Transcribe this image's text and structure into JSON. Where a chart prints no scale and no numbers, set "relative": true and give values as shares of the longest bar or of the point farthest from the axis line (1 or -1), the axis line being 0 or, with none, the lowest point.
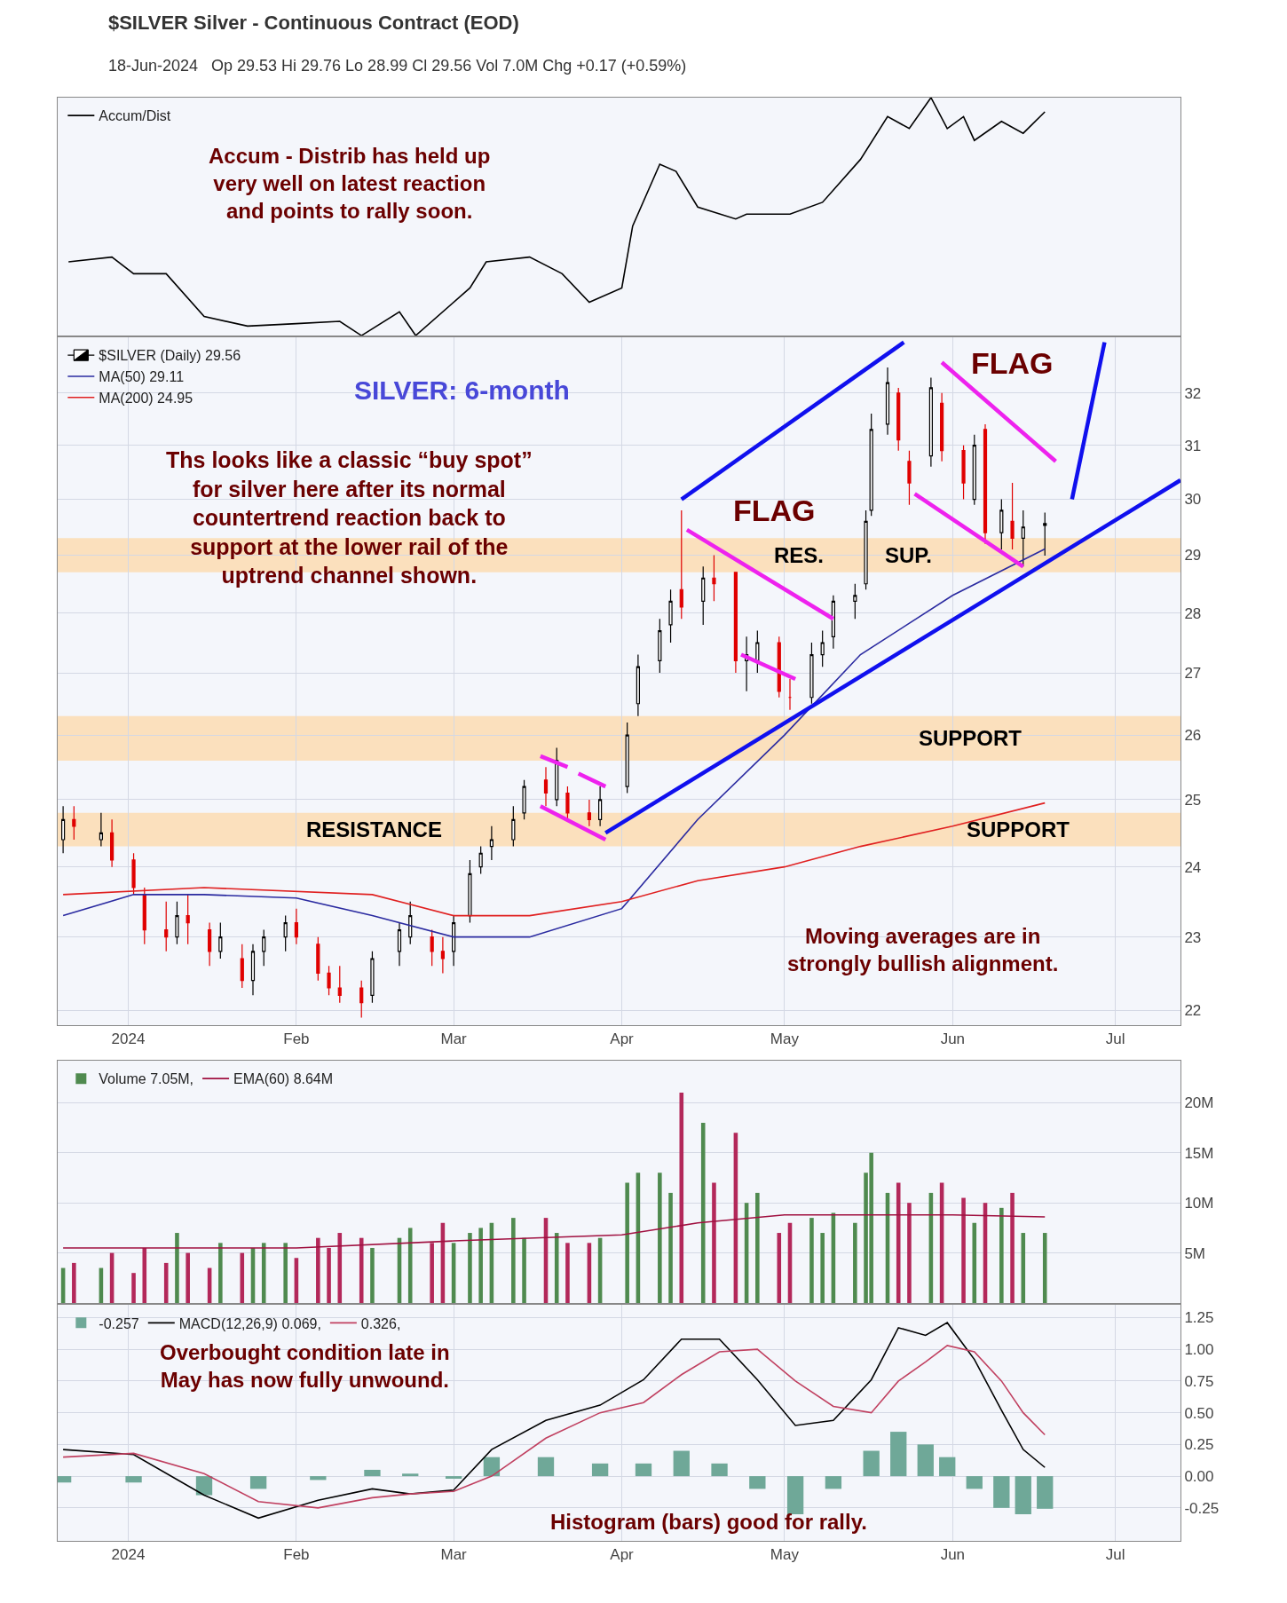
{
  "chart_data": [
    {
      "type": "line",
      "title": "$SILVER Silver - Continuous Contract (EOD)",
      "subtitle": "18-Jun-2024   Op 29.53 Hi 29.76 Lo 28.99 Cl 29.56 Vol 7.0M Chg +0.17 (+0.59%)",
      "relative": true,
      "legend": "top left",
      "grid": true,
      "tick_labels": false,
      "xlim": [
        "2023-12-19",
        "2024-07-13"
      ],
      "series": [
        {
          "name": "Accum/Dist",
          "color": "#000000",
          "x": [
            "2023-12-21",
            "2023-12-29",
            "2024-01-02",
            "2024-01-08",
            "2024-01-15",
            "2024-01-23",
            "2024-02-01",
            "2024-02-09",
            "2024-02-13",
            "2024-02-20",
            "2024-02-23",
            "2024-03-04",
            "2024-03-07",
            "2024-03-15",
            "2024-03-21",
            "2024-03-26",
            "2024-04-01",
            "2024-04-03",
            "2024-04-08",
            "2024-04-11",
            "2024-04-15",
            "2024-04-22",
            "2024-04-24",
            "2024-05-02",
            "2024-05-08",
            "2024-05-15",
            "2024-05-20",
            "2024-05-24",
            "2024-05-28",
            "2024-05-31",
            "2024-06-03",
            "2024-06-05",
            "2024-06-10",
            "2024-06-14",
            "2024-06-18"
          ],
          "values": [
            0.31,
            0.33,
            0.26,
            0.26,
            0.08,
            0.04,
            0.05,
            0.06,
            0.0,
            0.1,
            0.0,
            0.2,
            0.31,
            0.33,
            0.26,
            0.14,
            0.2,
            0.46,
            0.72,
            0.69,
            0.54,
            0.49,
            0.51,
            0.51,
            0.56,
            0.74,
            0.92,
            0.87,
            1.0,
            0.87,
            0.92,
            0.82,
            0.9,
            0.85,
            0.94
          ]
        }
      ],
      "annotations": [
        "Accum - Distrib has held up\nvery well on latest reaction\nand points to rally soon."
      ]
    },
    {
      "type": "candlestick",
      "legend": "top left",
      "grid": true,
      "log": "y",
      "xlim": [
        "2023-12-19",
        "2024-07-13"
      ],
      "xticks": [
        {
          "value": "2024-01-01",
          "label": "2024"
        },
        {
          "value": "2024-02-01",
          "label": "Feb"
        },
        {
          "value": "2024-03-01",
          "label": "Mar"
        },
        {
          "value": "2024-04-01",
          "label": "Apr"
        },
        {
          "value": "2024-05-01",
          "label": "May"
        },
        {
          "value": "2024-06-01",
          "label": "Jun"
        },
        {
          "value": "2024-07-01",
          "label": "Jul"
        }
      ],
      "ylim": [
        21.8,
        33.1
      ],
      "yticks": [
        22,
        23,
        24,
        25,
        26,
        27,
        28,
        29,
        30,
        31,
        32
      ],
      "bands": [
        {
          "axis": "y",
          "from": 24.3,
          "to": 24.8,
          "label": "RESISTANCE",
          "color": "#fbe0bd"
        },
        {
          "axis": "y",
          "from": 25.6,
          "to": 26.3,
          "label": "SUPPORT",
          "color": "#fbe0bd"
        },
        {
          "axis": "y",
          "from": 28.7,
          "to": 29.3,
          "label": "RES.",
          "color": "#fbe0bd"
        }
      ],
      "series": [
        {
          "name": "$SILVER (Daily) 29.56",
          "type": "candlestick",
          "colors": [
            "#000000",
            "#e00000",
            "#000000",
            "#e00000",
            "#e00000",
            "#e00000",
            "#e00000",
            "#000000",
            "#e00000",
            "#e00000",
            "#000000",
            "#e00000",
            "#000000",
            "#000000",
            "#000000",
            "#e00000",
            "#e00000",
            "#e00000",
            "#e00000",
            "#e00000",
            "#000000",
            "#000000",
            "#000000",
            "#e00000",
            "#e00000",
            "#000000",
            "#000000",
            "#000000",
            "#000000",
            "#000000",
            "#000000",
            "#e00000",
            "#000000",
            "#e00000",
            "#e00000",
            "#000000",
            "#000000",
            "#000000",
            "#000000",
            "#000000",
            "#e00000",
            "#000000",
            "#e00000",
            "#e00000",
            "#000000",
            "#000000",
            "#e00000",
            "#e00000",
            "#000000",
            "#000000",
            "#000000",
            "#000000",
            "#000000",
            "#000000",
            "#000000",
            "#e00000",
            "#e00000",
            "#000000",
            "#e00000",
            "#e00000",
            "#000000",
            "#e00000",
            "#000000",
            "#e00000",
            "#000000",
            "#000000"
          ],
          "x": [
            "2023-12-20",
            "2023-12-22",
            "2023-12-27",
            "2023-12-29",
            "2024-01-02",
            "2024-01-04",
            "2024-01-08",
            "2024-01-10",
            "2024-01-12",
            "2024-01-16",
            "2024-01-18",
            "2024-01-22",
            "2024-01-24",
            "2024-01-26",
            "2024-01-30",
            "2024-02-01",
            "2024-02-05",
            "2024-02-07",
            "2024-02-09",
            "2024-02-13",
            "2024-02-15",
            "2024-02-20",
            "2024-02-22",
            "2024-02-26",
            "2024-02-28",
            "2024-03-01",
            "2024-03-04",
            "2024-03-06",
            "2024-03-08",
            "2024-03-12",
            "2024-03-14",
            "2024-03-18",
            "2024-03-20",
            "2024-03-22",
            "2024-03-26",
            "2024-03-28",
            "2024-04-02",
            "2024-04-04",
            "2024-04-08",
            "2024-04-10",
            "2024-04-12",
            "2024-04-16",
            "2024-04-18",
            "2024-04-22",
            "2024-04-24",
            "2024-04-26",
            "2024-04-30",
            "2024-05-02",
            "2024-05-06",
            "2024-05-08",
            "2024-05-10",
            "2024-05-14",
            "2024-05-16",
            "2024-05-17",
            "2024-05-20",
            "2024-05-22",
            "2024-05-24",
            "2024-05-28",
            "2024-05-30",
            "2024-06-03",
            "2024-06-05",
            "2024-06-07",
            "2024-06-10",
            "2024-06-12",
            "2024-06-14",
            "2024-06-18"
          ],
          "ohlc": [
            [
              24.4,
              24.9,
              24.2,
              24.7
            ],
            [
              24.7,
              24.9,
              24.4,
              24.6
            ],
            [
              24.4,
              24.8,
              24.3,
              24.5
            ],
            [
              24.5,
              24.7,
              24.0,
              24.1
            ],
            [
              24.1,
              24.2,
              23.6,
              23.7
            ],
            [
              23.6,
              23.7,
              22.9,
              23.1
            ],
            [
              23.1,
              23.5,
              22.8,
              23.0
            ],
            [
              23.0,
              23.5,
              22.9,
              23.3
            ],
            [
              23.3,
              23.6,
              22.9,
              23.2
            ],
            [
              23.1,
              23.2,
              22.6,
              22.8
            ],
            [
              22.8,
              23.2,
              22.7,
              23.0
            ],
            [
              22.7,
              22.9,
              22.3,
              22.4
            ],
            [
              22.4,
              22.9,
              22.2,
              22.8
            ],
            [
              22.8,
              23.1,
              22.6,
              23.0
            ],
            [
              23.0,
              23.3,
              22.8,
              23.2
            ],
            [
              23.2,
              23.4,
              22.9,
              23.0
            ],
            [
              22.9,
              23.0,
              22.4,
              22.5
            ],
            [
              22.5,
              22.6,
              22.2,
              22.3
            ],
            [
              22.3,
              22.6,
              22.1,
              22.2
            ],
            [
              22.3,
              22.4,
              21.9,
              22.1
            ],
            [
              22.2,
              22.8,
              22.1,
              22.7
            ],
            [
              22.8,
              23.2,
              22.6,
              23.1
            ],
            [
              23.0,
              23.5,
              22.9,
              23.3
            ],
            [
              23.0,
              23.1,
              22.6,
              22.8
            ],
            [
              22.8,
              23.0,
              22.5,
              22.7
            ],
            [
              22.8,
              23.3,
              22.6,
              23.2
            ],
            [
              23.3,
              24.1,
              23.2,
              23.9
            ],
            [
              24.0,
              24.3,
              23.9,
              24.2
            ],
            [
              24.3,
              24.6,
              24.1,
              24.4
            ],
            [
              24.4,
              24.9,
              24.3,
              24.7
            ],
            [
              24.8,
              25.3,
              24.7,
              25.2
            ],
            [
              25.3,
              25.5,
              24.9,
              25.1
            ],
            [
              25.0,
              25.8,
              24.9,
              25.6
            ],
            [
              25.1,
              25.2,
              24.7,
              24.8
            ],
            [
              24.8,
              25.0,
              24.6,
              24.7
            ],
            [
              24.7,
              25.2,
              24.6,
              25.0
            ],
            [
              25.2,
              26.2,
              25.1,
              26.0
            ],
            [
              26.5,
              27.3,
              26.3,
              27.1
            ],
            [
              27.2,
              27.9,
              27.0,
              27.7
            ],
            [
              27.8,
              28.4,
              27.5,
              28.2
            ],
            [
              28.4,
              29.8,
              27.9,
              28.1
            ],
            [
              28.2,
              28.8,
              27.8,
              28.6
            ],
            [
              28.6,
              29.0,
              28.2,
              28.5
            ],
            [
              28.7,
              28.7,
              27.0,
              27.2
            ],
            [
              27.2,
              27.6,
              26.7,
              27.3
            ],
            [
              27.2,
              27.7,
              27.0,
              27.5
            ],
            [
              27.5,
              27.6,
              26.6,
              26.7
            ],
            [
              26.6,
              26.9,
              26.4,
              26.6
            ],
            [
              26.6,
              27.5,
              26.5,
              27.3
            ],
            [
              27.3,
              27.7,
              27.1,
              27.5
            ],
            [
              27.6,
              28.3,
              27.4,
              28.2
            ],
            [
              28.2,
              28.5,
              27.9,
              28.3
            ],
            [
              28.5,
              29.8,
              28.4,
              29.6
            ],
            [
              29.8,
              31.6,
              29.7,
              31.3
            ],
            [
              31.4,
              32.5,
              31.2,
              32.2
            ],
            [
              32.0,
              32.1,
              30.9,
              31.1
            ],
            [
              30.7,
              30.9,
              29.9,
              30.3
            ],
            [
              30.8,
              32.3,
              30.6,
              32.1
            ],
            [
              31.8,
              32.0,
              30.7,
              30.9
            ],
            [
              30.9,
              31.0,
              30.0,
              30.3
            ],
            [
              30.0,
              31.2,
              29.9,
              31.0
            ],
            [
              31.3,
              31.4,
              29.2,
              29.4
            ],
            [
              29.4,
              30.0,
              29.1,
              29.8
            ],
            [
              29.6,
              30.3,
              29.1,
              29.3
            ],
            [
              29.3,
              29.8,
              28.8,
              29.5
            ],
            [
              29.53,
              29.76,
              28.99,
              29.56
            ]
          ]
        },
        {
          "name": "MA(50) 29.11",
          "type": "line",
          "color": "#2a2aa0",
          "x": [
            "2023-12-20",
            "2024-01-02",
            "2024-01-15",
            "2024-02-01",
            "2024-02-15",
            "2024-03-01",
            "2024-03-15",
            "2024-04-01",
            "2024-04-15",
            "2024-05-01",
            "2024-05-15",
            "2024-06-01",
            "2024-06-18"
          ],
          "values": [
            23.3,
            23.6,
            23.6,
            23.55,
            23.3,
            23.0,
            23.0,
            23.4,
            24.7,
            26.0,
            27.3,
            28.3,
            29.11
          ]
        },
        {
          "name": "MA(200) 24.95",
          "type": "line",
          "color": "#e02020",
          "x": [
            "2023-12-20",
            "2024-01-15",
            "2024-02-15",
            "2024-03-01",
            "2024-03-15",
            "2024-04-01",
            "2024-04-15",
            "2024-05-01",
            "2024-05-15",
            "2024-06-01",
            "2024-06-18"
          ],
          "values": [
            23.6,
            23.7,
            23.6,
            23.3,
            23.3,
            23.5,
            23.8,
            24.0,
            24.3,
            24.6,
            24.95
          ]
        },
        {
          "type": "line",
          "color": "#1010ee",
          "x": [
            "2024-04-12",
            "2024-05-23"
          ],
          "values": [
            30.0,
            33.0
          ]
        },
        {
          "type": "line",
          "color": "#1010ee",
          "x": [
            "2024-03-29",
            "2024-07-13"
          ],
          "values": [
            24.5,
            30.35
          ]
        },
        {
          "type": "line",
          "color": "#1010ee",
          "x": [
            "2024-06-23",
            "2024-06-29"
          ],
          "values": [
            30.0,
            33.0
          ]
        },
        {
          "type": "line",
          "color": "#ee22ee",
          "x": [
            "2024-03-17",
            "2024-03-22"
          ],
          "values": [
            25.67,
            25.5
          ]
        },
        {
          "type": "line",
          "color": "#ee22ee",
          "x": [
            "2024-03-24",
            "2024-03-29"
          ],
          "values": [
            25.4,
            25.2
          ]
        },
        {
          "type": "line",
          "color": "#ee22ee",
          "x": [
            "2024-03-17",
            "2024-03-29"
          ],
          "values": [
            24.9,
            24.4
          ]
        },
        {
          "type": "line",
          "color": "#ee22ee",
          "x": [
            "2024-04-13",
            "2024-05-10"
          ],
          "values": [
            29.45,
            27.9
          ]
        },
        {
          "type": "line",
          "color": "#ee22ee",
          "x": [
            "2024-04-23",
            "2024-05-03"
          ],
          "values": [
            27.3,
            26.9
          ]
        },
        {
          "type": "line",
          "color": "#ee22ee",
          "x": [
            "2024-05-30",
            "2024-06-20"
          ],
          "values": [
            32.6,
            30.7
          ]
        },
        {
          "type": "line",
          "color": "#ee22ee",
          "x": [
            "2024-05-25",
            "2024-06-14"
          ],
          "values": [
            30.1,
            28.8
          ]
        }
      ],
      "annotations": [
        "SILVER: 6-month",
        "Ths looks like a classic “buy spot”\nfor silver here after its normal\ncountertrend reaction back to\nsupport at the lower rail of the\nuptrend channel shown.",
        "FLAG",
        "FLAG",
        "SUP.",
        "SUPPORT",
        "Moving averages are in\nstrongly bullish alignment."
      ]
    },
    {
      "type": "bar",
      "legend": "top left",
      "grid": true,
      "tick_labels": "y",
      "xlim": [
        "2023-12-19",
        "2024-07-13"
      ],
      "ylim": [
        0,
        24.2
      ],
      "yticks": [
        {
          "value": 5,
          "label": "5M"
        },
        {
          "value": 10,
          "label": "10M"
        },
        {
          "value": 15,
          "label": "15M"
        },
        {
          "value": 20,
          "label": "20M"
        }
      ],
      "series": [
        {
          "name": "Volume 7.05M,",
          "type": "bar",
          "x": [
            "2023-12-20",
            "2023-12-22",
            "2023-12-27",
            "2023-12-29",
            "2024-01-02",
            "2024-01-04",
            "2024-01-08",
            "2024-01-10",
            "2024-01-12",
            "2024-01-16",
            "2024-01-18",
            "2024-01-22",
            "2024-01-24",
            "2024-01-26",
            "2024-01-30",
            "2024-02-01",
            "2024-02-05",
            "2024-02-07",
            "2024-02-09",
            "2024-02-13",
            "2024-02-15",
            "2024-02-20",
            "2024-02-22",
            "2024-02-26",
            "2024-02-28",
            "2024-03-01",
            "2024-03-04",
            "2024-03-06",
            "2024-03-08",
            "2024-03-12",
            "2024-03-14",
            "2024-03-18",
            "2024-03-20",
            "2024-03-22",
            "2024-03-26",
            "2024-03-28",
            "2024-04-02",
            "2024-04-04",
            "2024-04-08",
            "2024-04-10",
            "2024-04-12",
            "2024-04-16",
            "2024-04-18",
            "2024-04-22",
            "2024-04-24",
            "2024-04-26",
            "2024-04-30",
            "2024-05-02",
            "2024-05-06",
            "2024-05-08",
            "2024-05-10",
            "2024-05-14",
            "2024-05-16",
            "2024-05-17",
            "2024-05-20",
            "2024-05-22",
            "2024-05-24",
            "2024-05-28",
            "2024-05-30",
            "2024-06-03",
            "2024-06-05",
            "2024-06-07",
            "2024-06-10",
            "2024-06-12",
            "2024-06-14",
            "2024-06-18"
          ],
          "values": [
            3.5,
            4,
            3.5,
            5,
            3,
            5.5,
            4,
            7,
            5,
            3.5,
            6,
            5,
            5.5,
            6,
            6,
            4.5,
            6.5,
            5.5,
            7,
            6.5,
            5.5,
            6.5,
            7.5,
            6,
            8,
            6,
            7,
            7.5,
            8,
            8.5,
            6.5,
            8.5,
            7,
            6,
            6,
            6.5,
            12,
            13,
            13,
            11,
            21,
            18,
            12,
            17,
            10,
            11,
            7,
            8,
            8.5,
            7,
            9,
            8,
            13,
            15,
            11,
            12,
            10,
            11,
            12,
            10.5,
            8,
            10,
            9.5,
            11,
            7,
            7.0
          ],
          "colors": [
            "#4f8a4f",
            "#b3285a",
            "#4f8a4f",
            "#b3285a",
            "#b3285a",
            "#b3285a",
            "#b3285a",
            "#4f8a4f",
            "#b3285a",
            "#b3285a",
            "#4f8a4f",
            "#b3285a",
            "#4f8a4f",
            "#4f8a4f",
            "#4f8a4f",
            "#b3285a",
            "#b3285a",
            "#b3285a",
            "#b3285a",
            "#b3285a",
            "#4f8a4f",
            "#4f8a4f",
            "#4f8a4f",
            "#b3285a",
            "#b3285a",
            "#4f8a4f",
            "#4f8a4f",
            "#4f8a4f",
            "#4f8a4f",
            "#4f8a4f",
            "#4f8a4f",
            "#b3285a",
            "#4f8a4f",
            "#b3285a",
            "#b3285a",
            "#4f8a4f",
            "#4f8a4f",
            "#4f8a4f",
            "#4f8a4f",
            "#4f8a4f",
            "#b3285a",
            "#4f8a4f",
            "#b3285a",
            "#b3285a",
            "#4f8a4f",
            "#4f8a4f",
            "#b3285a",
            "#b3285a",
            "#4f8a4f",
            "#4f8a4f",
            "#4f8a4f",
            "#4f8a4f",
            "#4f8a4f",
            "#4f8a4f",
            "#4f8a4f",
            "#b3285a",
            "#b3285a",
            "#4f8a4f",
            "#b3285a",
            "#b3285a",
            "#4f8a4f",
            "#b3285a",
            "#4f8a4f",
            "#b3285a",
            "#4f8a4f",
            "#4f8a4f"
          ]
        },
        {
          "name": "EMA(60) 8.64M",
          "type": "line",
          "color": "#a01040",
          "x": [
            "2023-12-20",
            "2024-02-01",
            "2024-03-01",
            "2024-04-01",
            "2024-04-15",
            "2024-05-01",
            "2024-06-01",
            "2024-06-18"
          ],
          "values": [
            5.5,
            5.5,
            6.2,
            6.8,
            8.0,
            8.8,
            8.8,
            8.6
          ]
        }
      ]
    },
    {
      "type": "line",
      "legend": "top left",
      "grid": true,
      "xlim": [
        "2023-12-19",
        "2024-07-13"
      ],
      "xticks": [
        {
          "value": "2024-01-01",
          "label": "2024"
        },
        {
          "value": "2024-02-01",
          "label": "Feb"
        },
        {
          "value": "2024-03-01",
          "label": "Mar"
        },
        {
          "value": "2024-04-01",
          "label": "Apr"
        },
        {
          "value": "2024-05-01",
          "label": "May"
        },
        {
          "value": "2024-06-01",
          "label": "Jun"
        },
        {
          "value": "2024-07-01",
          "label": "Jul"
        }
      ],
      "ylim": [
        -0.51,
        1.35
      ],
      "yticks": [
        {
          "value": -0.25,
          "label": "-0.25"
        },
        {
          "value": 0,
          "label": "0.00"
        },
        {
          "value": 0.25,
          "label": "0.25"
        },
        {
          "value": 0.5,
          "label": "0.50"
        },
        {
          "value": 0.75,
          "label": "0.75"
        },
        {
          "value": 1,
          "label": "1.00"
        },
        {
          "value": 1.25,
          "label": "1.25"
        }
      ],
      "x": [
        "2023-12-20",
        "2024-01-02",
        "2024-01-15",
        "2024-01-25",
        "2024-02-05",
        "2024-02-15",
        "2024-02-22",
        "2024-03-01",
        "2024-03-08",
        "2024-03-18",
        "2024-03-28",
        "2024-04-05",
        "2024-04-12",
        "2024-04-19",
        "2024-04-26",
        "2024-05-03",
        "2024-05-10",
        "2024-05-17",
        "2024-05-22",
        "2024-05-27",
        "2024-05-31",
        "2024-06-05",
        "2024-06-10",
        "2024-06-14",
        "2024-06-18"
      ],
      "series": [
        {
          "name": "-0.257",
          "type": "bar",
          "color": "#6fa898",
          "values": [
            -0.05,
            -0.05,
            -0.15,
            -0.1,
            -0.03,
            0.05,
            0.02,
            -0.02,
            0.15,
            0.15,
            0.1,
            0.1,
            0.2,
            0.1,
            -0.1,
            -0.3,
            -0.1,
            0.2,
            0.35,
            0.25,
            0.15,
            -0.1,
            -0.25,
            -0.3,
            -0.257
          ]
        },
        {
          "name": "MACD(12,26,9) 0.069,",
          "color": "#000000",
          "values": [
            0.21,
            0.17,
            -0.15,
            -0.33,
            -0.19,
            -0.1,
            -0.14,
            -0.11,
            0.21,
            0.44,
            0.56,
            0.76,
            1.08,
            1.08,
            0.76,
            0.4,
            0.44,
            0.76,
            1.17,
            1.11,
            1.21,
            0.92,
            0.52,
            0.21,
            0.069
          ]
        },
        {
          "name": "0.326,",
          "color": "#c04060",
          "values": [
            0.15,
            0.18,
            0.02,
            -0.2,
            -0.25,
            -0.17,
            -0.14,
            -0.12,
            0.0,
            0.3,
            0.5,
            0.58,
            0.8,
            0.98,
            1.0,
            0.75,
            0.55,
            0.5,
            0.75,
            0.9,
            1.03,
            0.98,
            0.75,
            0.5,
            0.326
          ]
        }
      ],
      "annotations": [
        "Overbought condition late in\nMay has now fully unwound.",
        "Histogram (bars) good for rally."
      ]
    }
  ]
}
